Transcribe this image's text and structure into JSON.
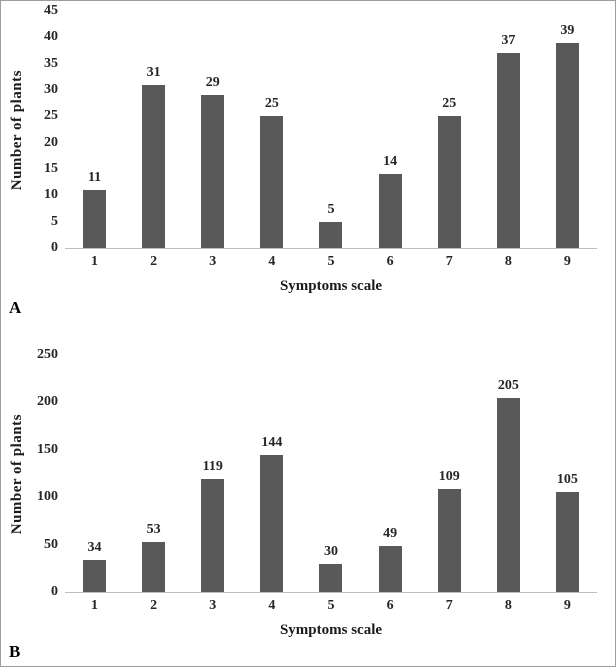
{
  "chart_data": [
    {
      "type": "bar",
      "panel_label": "A",
      "title": "",
      "categories": [
        "1",
        "2",
        "3",
        "4",
        "5",
        "6",
        "7",
        "8",
        "9"
      ],
      "values": [
        11,
        31,
        29,
        25,
        5,
        14,
        25,
        37,
        39
      ],
      "xlabel": "Symptoms scale",
      "ylabel": "Number of plants",
      "ylim": [
        0,
        45
      ],
      "yticks": [
        45,
        40,
        35,
        30,
        25,
        20,
        15,
        10,
        5,
        0
      ],
      "grid": false,
      "legend": false,
      "bar_color": "#595959",
      "axis_line_color": "#bfbfbf"
    },
    {
      "type": "bar",
      "panel_label": "B",
      "title": "",
      "categories": [
        "1",
        "2",
        "3",
        "4",
        "5",
        "6",
        "7",
        "8",
        "9"
      ],
      "values": [
        34,
        53,
        119,
        144,
        30,
        49,
        109,
        205,
        105
      ],
      "xlabel": "Symptoms scale",
      "ylabel": "Number of plants",
      "ylim": [
        0,
        250
      ],
      "yticks": [
        250,
        200,
        150,
        100,
        50,
        0
      ],
      "grid": false,
      "legend": false,
      "bar_color": "#595959",
      "axis_line_color": "#bfbfbf"
    }
  ]
}
